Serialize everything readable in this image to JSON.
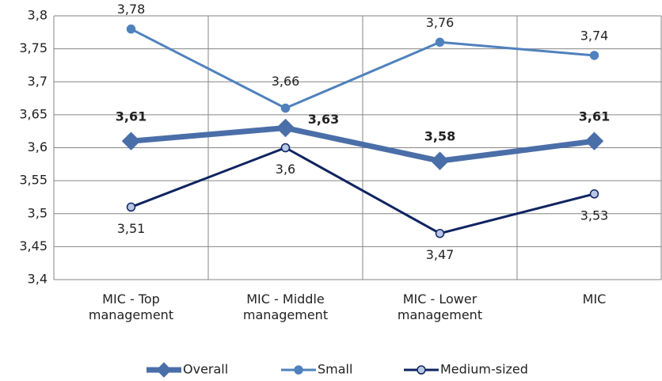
{
  "chart_data": {
    "type": "line",
    "categories": [
      "MIC - Top management",
      "MIC - Middle management",
      "MIC - Lower management",
      "MIC"
    ],
    "series": [
      {
        "name": "Overall",
        "color": "#4a6ea8",
        "values": [
          3.61,
          3.63,
          3.58,
          3.61
        ],
        "value_labels": [
          "3,61",
          "3,63",
          "3,58",
          "3,61"
        ]
      },
      {
        "name": "Small",
        "color": "#4f81bd",
        "values": [
          3.78,
          3.66,
          3.76,
          3.74
        ],
        "value_labels": [
          "3,78",
          "3,66",
          "3,76",
          "3,74"
        ]
      },
      {
        "name": "Medium-sized",
        "color": "#0f2460",
        "values": [
          3.51,
          3.6,
          3.47,
          3.53
        ],
        "value_labels": [
          "3,51",
          "3,6",
          "3,47",
          "3,53"
        ]
      }
    ],
    "ylim": [
      3.4,
      3.8
    ],
    "yticks": [
      {
        "value": 3.4,
        "label": "3,4"
      },
      {
        "value": 3.45,
        "label": "3,45"
      },
      {
        "value": 3.5,
        "label": "3,5"
      },
      {
        "value": 3.55,
        "label": "3,55"
      },
      {
        "value": 3.6,
        "label": "3,6"
      },
      {
        "value": 3.65,
        "label": "3,65"
      },
      {
        "value": 3.7,
        "label": "3,7"
      },
      {
        "value": 3.75,
        "label": "3,75"
      },
      {
        "value": 3.8,
        "label": "3,8"
      }
    ],
    "grid": true,
    "legend": "bottom"
  }
}
